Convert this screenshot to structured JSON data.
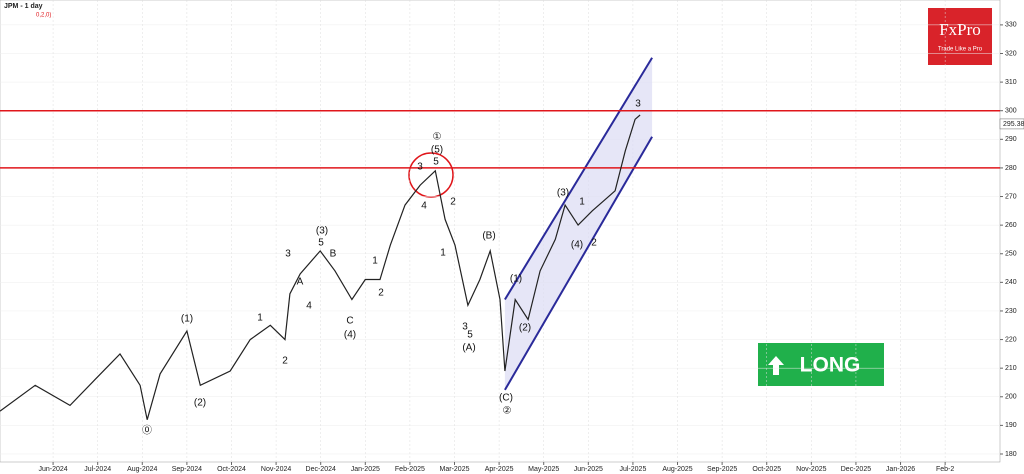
{
  "chart_data": {
    "type": "line",
    "title": "JPM - 1 day",
    "subtitle": "0,2,0)",
    "x": [
      -1.19,
      -0.4,
      0.38,
      0.94,
      1.5,
      1.95,
      2.11,
      2.4,
      3.0,
      3.3,
      3.97,
      4.42,
      4.87,
      5.2,
      5.31,
      5.54,
      5.99,
      6.32,
      6.7,
      7.0,
      7.33,
      7.56,
      7.89,
      8.23,
      8.57,
      8.79,
      9.01,
      9.3,
      9.57,
      9.8,
      10.02,
      10.13,
      10.36,
      10.65,
      10.92,
      11.26,
      11.48,
      11.77,
      12.09,
      12.38,
      12.6,
      12.83,
      13.05,
      13.16
    ],
    "series": [
      {
        "name": "JPM",
        "color": "#222222",
        "values": [
          195,
          204,
          197,
          206,
          215,
          204,
          192,
          208,
          223,
          204,
          209,
          220,
          225,
          220,
          236,
          243,
          251,
          244,
          234,
          241,
          241,
          253,
          267,
          274,
          279,
          262,
          253,
          232,
          241,
          251,
          234,
          209,
          234,
          227,
          244,
          255,
          267,
          260,
          265,
          269,
          272,
          286,
          297,
          298.5
        ]
      }
    ],
    "channel": {
      "x": [
        10.13,
        13.43
      ],
      "upper": [
        234,
        318.5
      ],
      "lower": [
        202.4,
        290.9
      ],
      "color": "#2a2a9a"
    },
    "levels": [
      300,
      280
    ],
    "level_color": "#e0161b",
    "last_price": 295.38,
    "xlim": [
      -1.19,
      21.23
    ],
    "ylim": [
      177.2,
      338.7
    ],
    "xticks": [
      {
        "value": 0,
        "label": "Jun-2024"
      },
      {
        "value": 1,
        "label": "Jul-2024"
      },
      {
        "value": 2,
        "label": "Aug-2024"
      },
      {
        "value": 3,
        "label": "Sep-2024"
      },
      {
        "value": 4,
        "label": "Oct-2024"
      },
      {
        "value": 5,
        "label": "Nov-2024"
      },
      {
        "value": 6,
        "label": "Dec-2024"
      },
      {
        "value": 7,
        "label": "Jan-2025"
      },
      {
        "value": 8,
        "label": "Feb-2025"
      },
      {
        "value": 9,
        "label": "Mar-2025"
      },
      {
        "value": 10,
        "label": "Apr-2025"
      },
      {
        "value": 11,
        "label": "May-2025"
      },
      {
        "value": 12,
        "label": "Jun-2025"
      },
      {
        "value": 13,
        "label": "Jul-2025"
      },
      {
        "value": 14,
        "label": "Aug-2025"
      },
      {
        "value": 15,
        "label": "Sep-2025"
      },
      {
        "value": 16,
        "label": "Oct-2025"
      },
      {
        "value": 17,
        "label": "Nov-2025"
      },
      {
        "value": 18,
        "label": "Dec-2025"
      },
      {
        "value": 19,
        "label": "Jan-2026"
      },
      {
        "value": 20,
        "label": "Feb-2"
      }
    ],
    "yticks": [
      180,
      190,
      200,
      210,
      220,
      230,
      240,
      250,
      260,
      270,
      280,
      290,
      300,
      310,
      320,
      330
    ],
    "grid": true,
    "annotations": [
      "①",
      "(5)",
      "5",
      "3",
      "4",
      "2",
      "1",
      "3",
      "5",
      "(A)",
      "(B)",
      "(1)",
      "(2)",
      "(C)",
      "②",
      "(3)",
      "(4)",
      "2",
      "1",
      "3",
      "(1)",
      "(2)",
      "⓪",
      "1",
      "2",
      "3",
      "4",
      "(3)",
      "5",
      "B",
      "A",
      "C",
      "(4)",
      "1",
      "2"
    ],
    "logo": {
      "name": "FxPro",
      "tagline": "Trade Like a Pro"
    },
    "signal": "LONG"
  }
}
